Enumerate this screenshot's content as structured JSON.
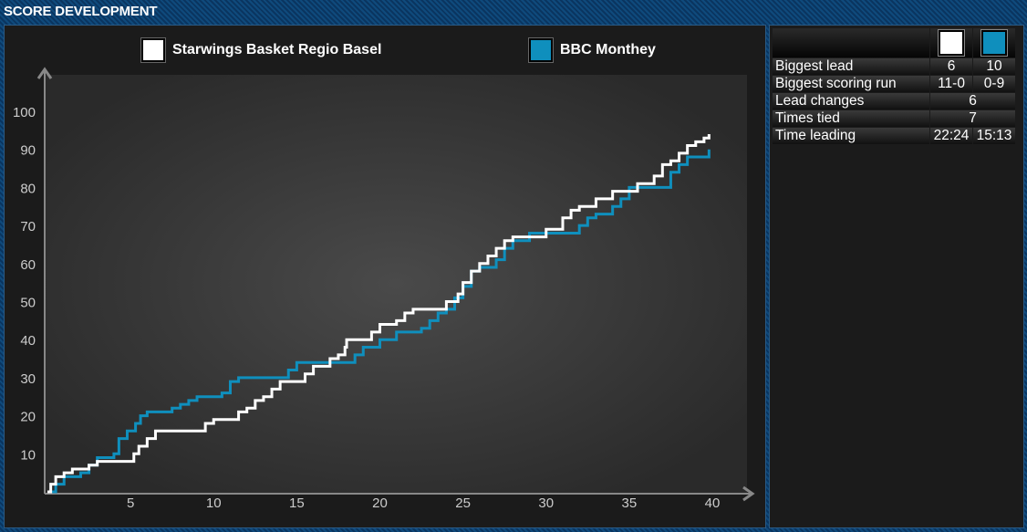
{
  "header": {
    "title": "SCORE DEVELOPMENT"
  },
  "colors": {
    "home": "#ffffff",
    "away": "#0f8fbd"
  },
  "legend": {
    "home": "Starwings Basket Regio Basel",
    "away": "BBC Monthey"
  },
  "stats": {
    "rows": [
      {
        "label": "Biggest lead",
        "home": "6",
        "away": "10"
      },
      {
        "label": "Biggest scoring run",
        "home": "11-0",
        "away": "0-9"
      },
      {
        "label": "Lead changes",
        "value": "6"
      },
      {
        "label": "Times tied",
        "value": "7"
      },
      {
        "label": "Time leading",
        "home": "22:24",
        "away": "15:13"
      }
    ]
  },
  "chart_data": {
    "type": "line",
    "title": "SCORE DEVELOPMENT",
    "xlabel": "",
    "ylabel": "",
    "xlim": [
      0,
      40
    ],
    "ylim": [
      0,
      105
    ],
    "x_ticks": [
      5,
      10,
      15,
      20,
      25,
      30,
      35,
      40
    ],
    "y_ticks": [
      10,
      20,
      30,
      40,
      50,
      60,
      70,
      80,
      90,
      100
    ],
    "series": [
      {
        "name": "Starwings Basket Regio Basel",
        "points": [
          [
            0,
            0
          ],
          [
            0.2,
            2
          ],
          [
            0.5,
            4
          ],
          [
            1,
            5
          ],
          [
            1.5,
            6
          ],
          [
            2,
            6
          ],
          [
            2.5,
            7
          ],
          [
            3,
            8
          ],
          [
            4,
            8
          ],
          [
            5,
            8
          ],
          [
            5.2,
            10
          ],
          [
            5.5,
            12
          ],
          [
            6,
            14
          ],
          [
            6.5,
            16
          ],
          [
            7,
            16
          ],
          [
            8,
            16
          ],
          [
            9,
            16
          ],
          [
            9.5,
            18
          ],
          [
            10,
            19
          ],
          [
            11,
            19
          ],
          [
            11.5,
            21
          ],
          [
            12,
            22
          ],
          [
            12.5,
            24
          ],
          [
            13,
            25
          ],
          [
            13.5,
            27
          ],
          [
            14,
            29
          ],
          [
            15,
            29
          ],
          [
            15.5,
            31
          ],
          [
            16,
            33
          ],
          [
            17,
            35
          ],
          [
            17.5,
            36
          ],
          [
            17.9,
            38
          ],
          [
            18,
            40
          ],
          [
            19,
            40
          ],
          [
            19.5,
            42
          ],
          [
            20,
            44
          ],
          [
            21,
            45
          ],
          [
            21.5,
            47
          ],
          [
            22,
            48
          ],
          [
            23,
            48
          ],
          [
            24,
            50
          ],
          [
            24.7,
            52
          ],
          [
            25,
            55
          ],
          [
            25.5,
            58
          ],
          [
            26,
            60
          ],
          [
            26.5,
            62
          ],
          [
            27,
            64
          ],
          [
            27.5,
            66
          ],
          [
            28,
            67
          ],
          [
            29,
            67
          ],
          [
            30,
            69
          ],
          [
            31,
            72
          ],
          [
            31.5,
            74
          ],
          [
            32,
            75
          ],
          [
            33,
            77
          ],
          [
            34,
            79
          ],
          [
            35,
            79
          ],
          [
            35.5,
            81
          ],
          [
            36,
            81
          ],
          [
            36.5,
            83
          ],
          [
            37,
            86
          ],
          [
            37.5,
            87
          ],
          [
            38,
            89
          ],
          [
            38.5,
            91
          ],
          [
            39,
            92
          ],
          [
            39.5,
            93
          ],
          [
            39.8,
            94
          ]
        ]
      },
      {
        "name": "BBC Monthey",
        "points": [
          [
            0,
            0
          ],
          [
            0.5,
            2
          ],
          [
            1,
            4
          ],
          [
            2,
            5
          ],
          [
            2.5,
            7
          ],
          [
            3,
            9
          ],
          [
            4,
            10
          ],
          [
            4.3,
            14
          ],
          [
            4.8,
            16
          ],
          [
            5.3,
            18
          ],
          [
            5.6,
            20
          ],
          [
            6,
            21
          ],
          [
            7,
            21
          ],
          [
            7.5,
            22
          ],
          [
            8,
            23
          ],
          [
            8.5,
            24
          ],
          [
            9,
            25
          ],
          [
            10,
            25
          ],
          [
            10.5,
            26
          ],
          [
            11,
            29
          ],
          [
            11.5,
            30
          ],
          [
            12,
            30
          ],
          [
            14,
            30
          ],
          [
            14.5,
            32
          ],
          [
            15,
            34
          ],
          [
            16,
            34
          ],
          [
            17,
            34
          ],
          [
            18,
            34
          ],
          [
            18.5,
            36
          ],
          [
            19,
            38
          ],
          [
            20,
            40
          ],
          [
            21,
            42
          ],
          [
            22,
            42
          ],
          [
            22.5,
            43
          ],
          [
            23,
            45
          ],
          [
            23.5,
            47
          ],
          [
            24,
            48
          ],
          [
            24.5,
            51
          ],
          [
            25,
            54
          ],
          [
            25.5,
            58
          ],
          [
            26,
            59
          ],
          [
            27,
            61
          ],
          [
            27.5,
            64
          ],
          [
            28,
            66
          ],
          [
            29,
            68
          ],
          [
            30,
            68
          ],
          [
            31,
            68
          ],
          [
            32,
            70
          ],
          [
            32.5,
            72
          ],
          [
            33,
            73
          ],
          [
            34,
            75
          ],
          [
            34.5,
            77
          ],
          [
            35,
            80
          ],
          [
            36,
            80
          ],
          [
            37,
            80
          ],
          [
            37.5,
            84
          ],
          [
            38,
            86
          ],
          [
            38.5,
            88
          ],
          [
            39,
            88
          ],
          [
            39.5,
            88
          ],
          [
            39.8,
            90
          ]
        ]
      }
    ]
  }
}
